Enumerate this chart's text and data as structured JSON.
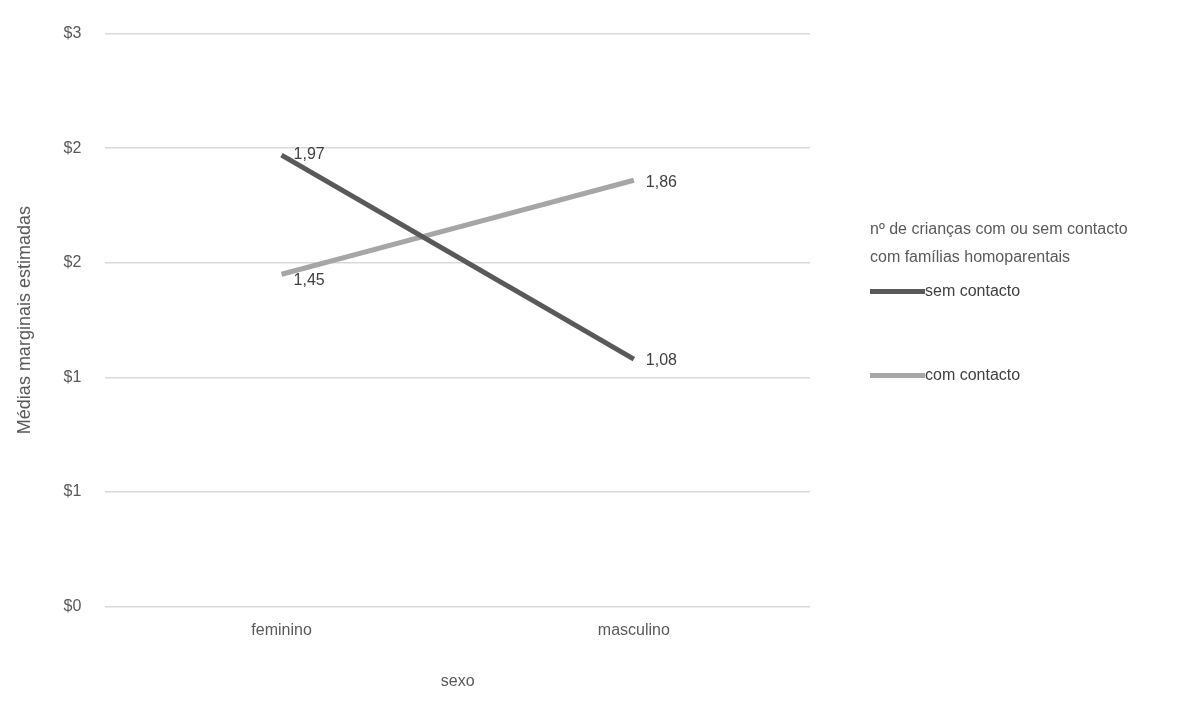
{
  "chart_data": {
    "type": "line",
    "xlabel": "sexo",
    "ylabel": "Médias marginais estimadas",
    "legend_title": "nº de crianças com ou sem contacto com famílias homoparentais",
    "categories": [
      "feminino",
      "masculino"
    ],
    "series": [
      {
        "name": "sem contacto",
        "color": "#595959",
        "values": [
          1.97,
          1.08
        ],
        "value_labels": [
          "1,97",
          "1,08"
        ]
      },
      {
        "name": "com contacto",
        "color": "#a6a6a6",
        "values": [
          1.45,
          1.86
        ],
        "value_labels": [
          "1,45",
          "1,86"
        ]
      }
    ],
    "ylim": [
      0,
      2.5
    ],
    "yticks": [
      {
        "value": 0,
        "label": "$0"
      },
      {
        "value": 0.5,
        "label": "$1"
      },
      {
        "value": 1,
        "label": "$1"
      },
      {
        "value": 1.5,
        "label": "$2"
      },
      {
        "value": 2,
        "label": "$2"
      },
      {
        "value": 2.5,
        "label": "$3"
      }
    ],
    "grid": "y",
    "legend": "right",
    "marker": "none",
    "line_style": "solid"
  }
}
